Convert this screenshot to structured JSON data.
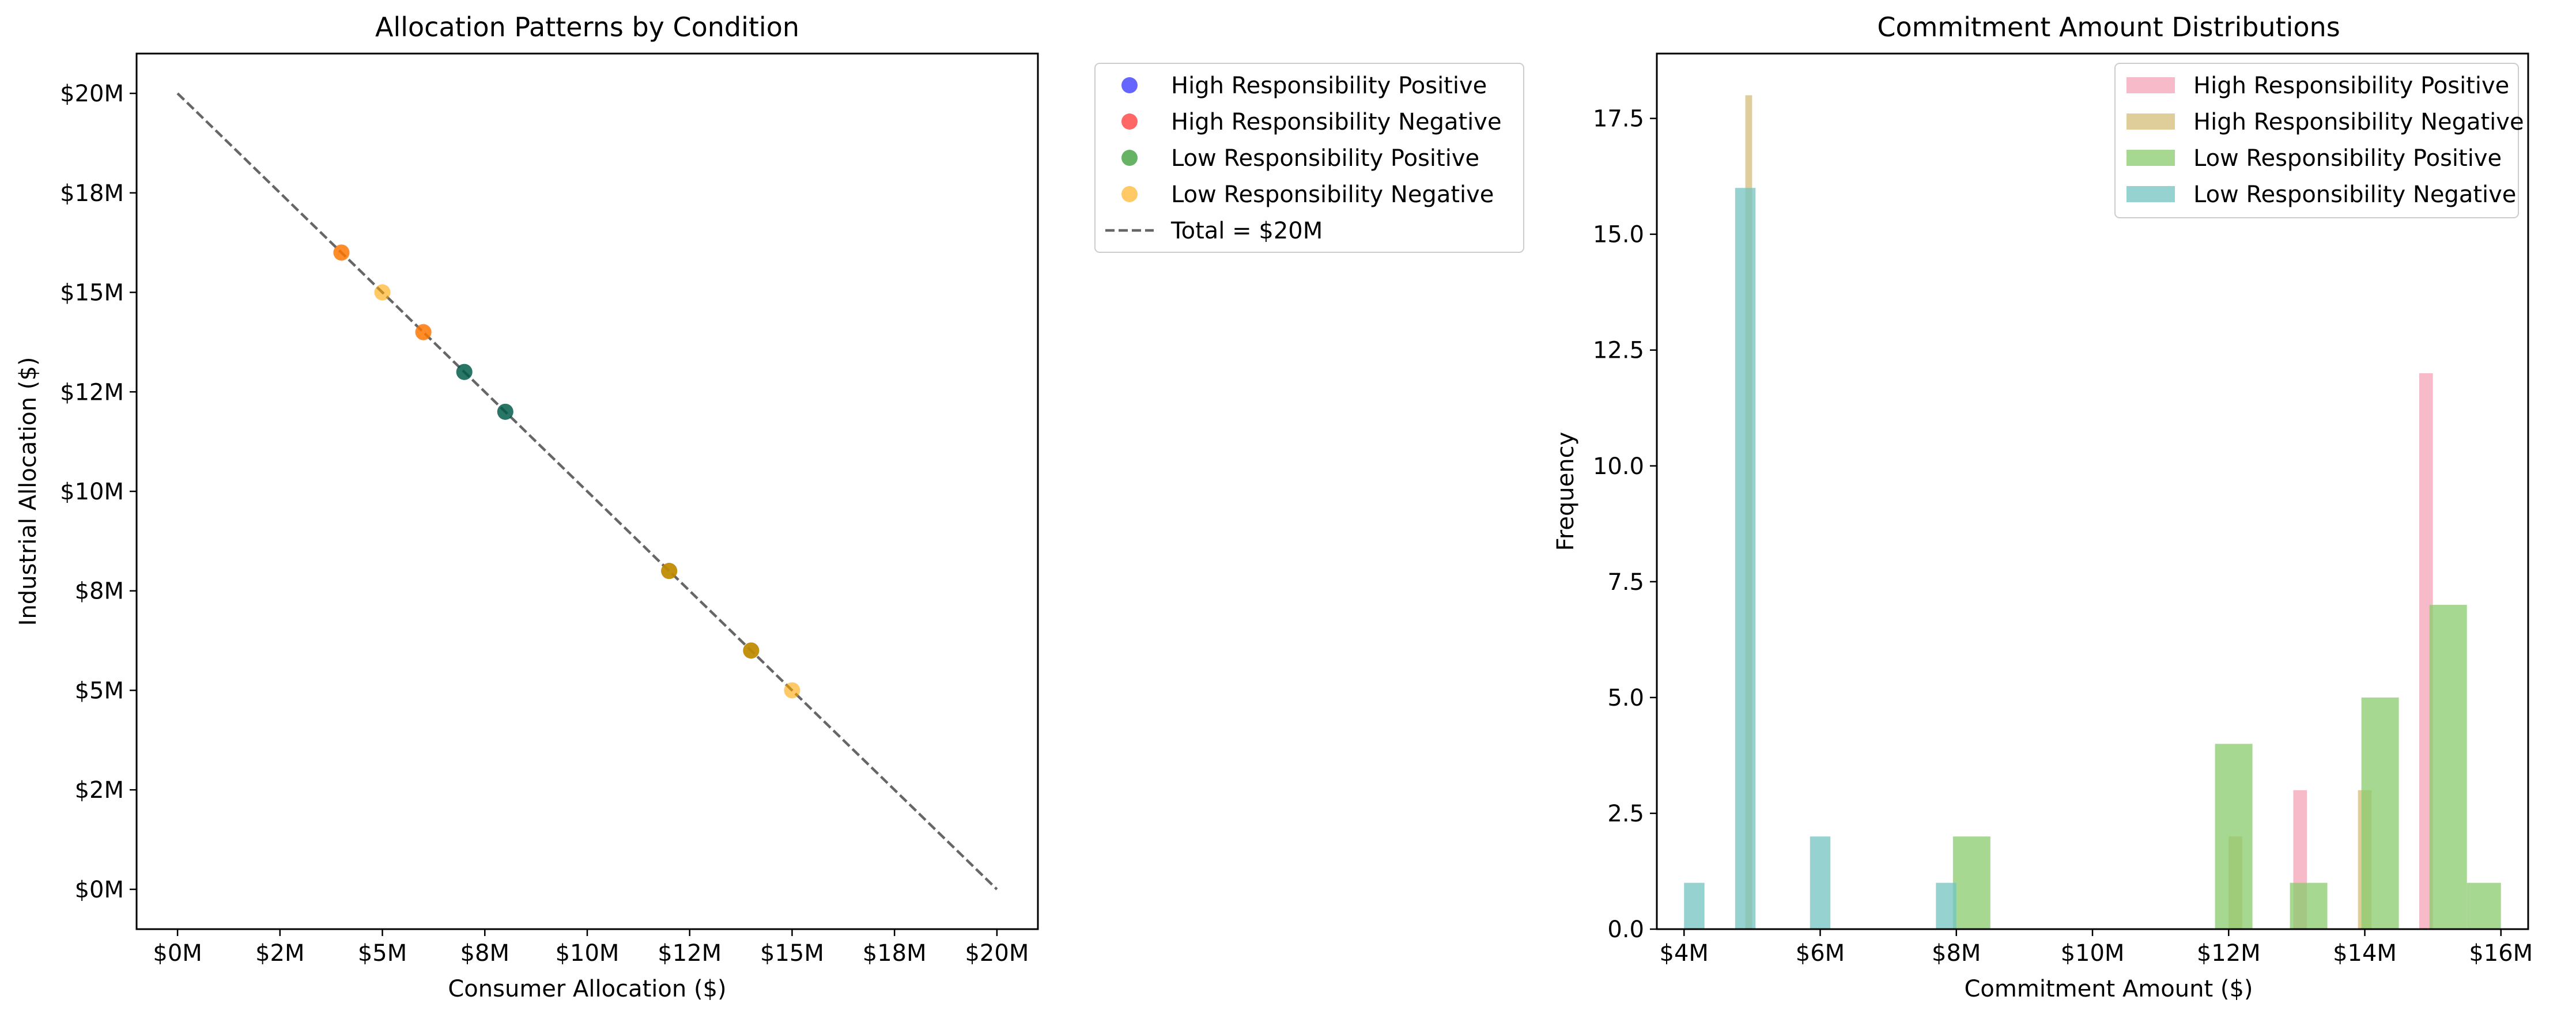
{
  "chart_data": [
    {
      "type": "scatter",
      "title": "Allocation Patterns by Condition",
      "xlabel": "Consumer Allocation ($)",
      "ylabel": "Industrial Allocation ($)",
      "xlim": [
        -1,
        21
      ],
      "ylim": [
        -1,
        21
      ],
      "xticks": [
        0,
        2.5,
        5,
        7.5,
        10,
        12.5,
        15,
        17.5,
        20
      ],
      "xtick_labels": [
        "$0M",
        "$2M",
        "$5M",
        "$8M",
        "$10M",
        "$12M",
        "$15M",
        "$18M",
        "$20M"
      ],
      "yticks": [
        0,
        2.5,
        5,
        7.5,
        10,
        12.5,
        15,
        17.5,
        20
      ],
      "ytick_labels": [
        "$0M",
        "$2M",
        "$5M",
        "$8M",
        "$10M",
        "$12M",
        "$15M",
        "$18M",
        "$20M"
      ],
      "grid": false,
      "legend_position": "outside-top-right",
      "series": [
        {
          "name": "High Responsibility Positive",
          "color": "#0000ff",
          "points": [
            [
              7,
              13
            ],
            [
              8,
              12
            ]
          ]
        },
        {
          "name": "High Responsibility Negative",
          "color": "#ff0000",
          "points": [
            [
              4,
              16
            ],
            [
              6,
              14
            ],
            [
              12,
              8
            ],
            [
              14,
              6
            ]
          ]
        },
        {
          "name": "Low Responsibility Positive",
          "color": "#008000",
          "points": [
            [
              7,
              13
            ],
            [
              8,
              12
            ],
            [
              12,
              8
            ],
            [
              14,
              6
            ]
          ]
        },
        {
          "name": "Low Responsibility Negative",
          "color": "#ffa500",
          "points": [
            [
              4,
              16
            ],
            [
              5,
              15
            ],
            [
              6,
              14
            ],
            [
              12,
              8
            ],
            [
              14,
              6
            ],
            [
              15,
              5
            ]
          ]
        }
      ],
      "reference_line": {
        "name": "Total = $20M",
        "color": "#666666",
        "points": [
          [
            0,
            20
          ],
          [
            20,
            0
          ]
        ]
      }
    },
    {
      "type": "histogram",
      "title": "Commitment Amount Distributions",
      "xlabel": "Commitment Amount ($)",
      "ylabel": "Frequency",
      "xlim": [
        3.6,
        16.4
      ],
      "ylim": [
        0,
        18.9
      ],
      "xticks": [
        4,
        6,
        8,
        10,
        12,
        14,
        16
      ],
      "xtick_labels": [
        "$4M",
        "$6M",
        "$8M",
        "$10M",
        "$12M",
        "$14M",
        "$16M"
      ],
      "yticks": [
        0,
        2.5,
        5,
        7.5,
        10,
        12.5,
        15,
        17.5
      ],
      "ytick_labels": [
        "0.0",
        "2.5",
        "5.0",
        "7.5",
        "10.0",
        "12.5",
        "15.0",
        "17.5"
      ],
      "grid": false,
      "legend_position": "top-right",
      "series": [
        {
          "name": "High Responsibility Positive",
          "color": "#f4a3b5",
          "bins": [
            [
              12.95,
              13.15,
              3
            ],
            [
              14.8,
              15.0,
              12
            ]
          ]
        },
        {
          "name": "High Responsibility Negative",
          "color": "#d4bc78",
          "bins": [
            [
              4.9,
              5.0,
              18
            ],
            [
              12.0,
              12.2,
              2
            ],
            [
              13.9,
              14.1,
              3
            ]
          ]
        },
        {
          "name": "Low Responsibility Positive",
          "color": "#8acb6e",
          "bins": [
            [
              7.95,
              8.5,
              2
            ],
            [
              11.8,
              12.35,
              4
            ],
            [
              12.9,
              13.45,
              1
            ],
            [
              13.95,
              14.5,
              5
            ],
            [
              14.95,
              15.5,
              7
            ],
            [
              15.5,
              16.0,
              1
            ]
          ]
        },
        {
          "name": "Low Responsibility Negative",
          "color": "#73c4c0",
          "bins": [
            [
              4.0,
              4.3,
              1
            ],
            [
              4.75,
              5.05,
              16
            ],
            [
              5.85,
              6.15,
              2
            ],
            [
              7.7,
              8.0,
              1
            ]
          ]
        }
      ]
    }
  ]
}
